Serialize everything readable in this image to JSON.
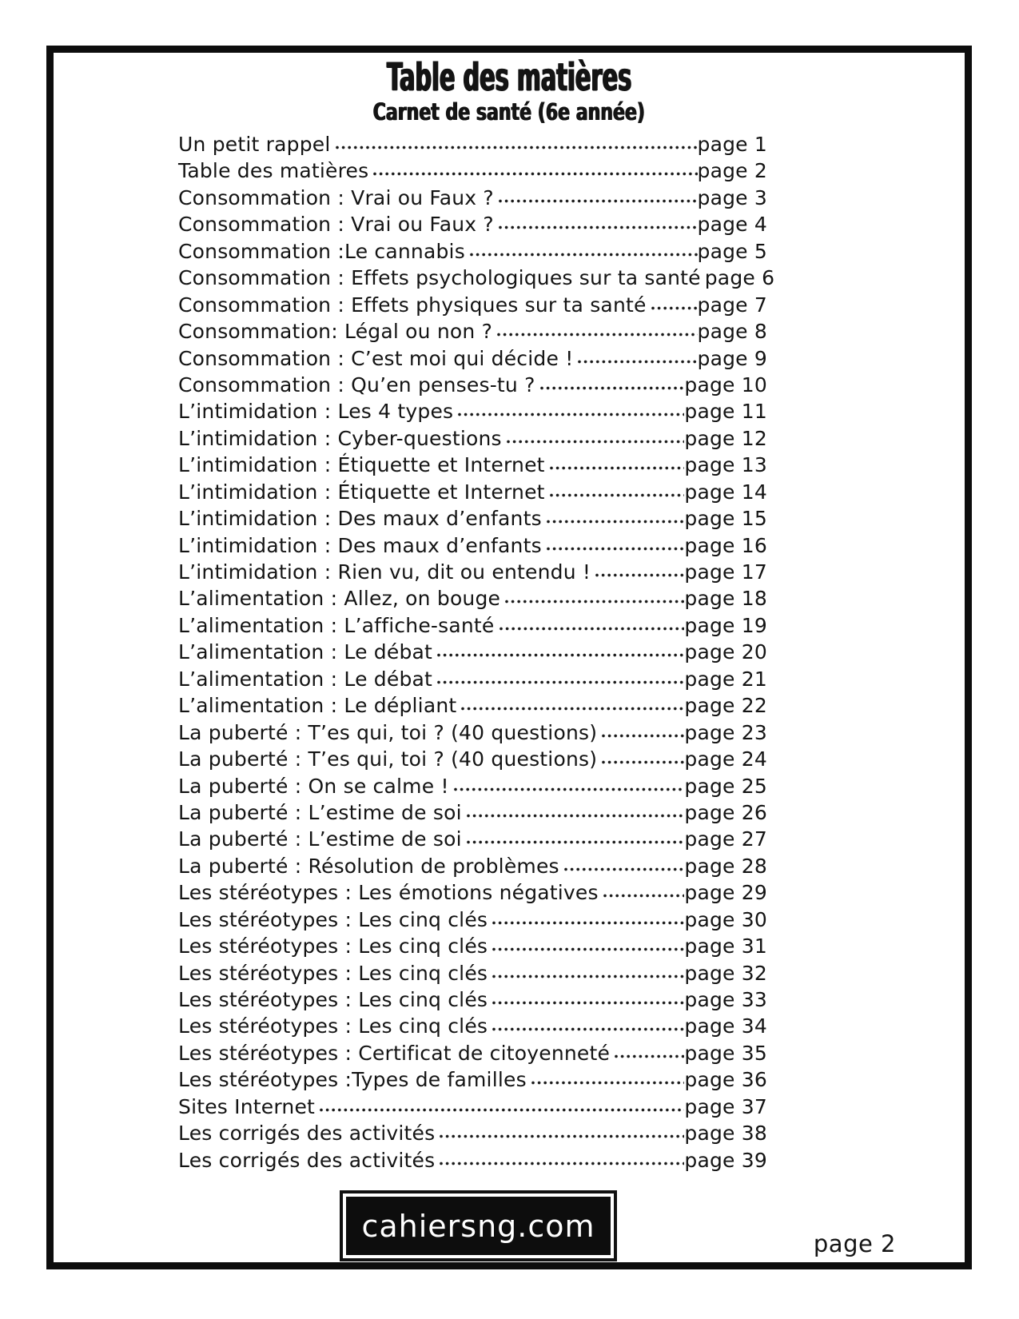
{
  "colors": {
    "ink": "#141414",
    "paper": "#ffffff",
    "frame": "#0d0d0d",
    "badge_background": "#0d0d0d",
    "badge_text": "#ffffff"
  },
  "header": {
    "title": "Table des matières",
    "subtitle": "Carnet de santé (6e année)"
  },
  "toc": {
    "entries": [
      {
        "label": "Un petit rappel",
        "page": "page 1"
      },
      {
        "label": "Table des matières",
        "page": "page 2"
      },
      {
        "label": "Consommation : Vrai ou Faux ?",
        "page": "page 3"
      },
      {
        "label": "Consommation : Vrai ou Faux ?",
        "page": "page 4"
      },
      {
        "label": "Consommation :Le cannabis",
        "page": "page 5"
      },
      {
        "label": "Consommation : Effets psychologiques sur ta santé",
        "page": "page 6"
      },
      {
        "label": "Consommation : Effets physiques sur ta santé",
        "page": "page 7"
      },
      {
        "label": "Consommation: Légal ou non ?",
        "page": "page 8"
      },
      {
        "label": "Consommation : C’est moi qui décide !",
        "page": "page 9"
      },
      {
        "label": "Consommation : Qu’en penses-tu ?",
        "page": "page 10"
      },
      {
        "label": "L’intimidation : Les 4 types",
        "page": "page 11"
      },
      {
        "label": "L’intimidation : Cyber-questions",
        "page": "page 12"
      },
      {
        "label": "L’intimidation : Étiquette et Internet",
        "page": "page 13"
      },
      {
        "label": "L’intimidation : Étiquette et Internet",
        "page": "page 14"
      },
      {
        "label": "L’intimidation : Des maux d’enfants",
        "page": "page 15"
      },
      {
        "label": "L’intimidation : Des maux d’enfants",
        "page": "page 16"
      },
      {
        "label": "L’intimidation : Rien vu, dit ou entendu !",
        "page": "page 17"
      },
      {
        "label": "L’alimentation : Allez, on bouge",
        "page": "page 18"
      },
      {
        "label": "L’alimentation : L’affiche-santé",
        "page": "page 19"
      },
      {
        "label": "L’alimentation : Le débat",
        "page": "page 20"
      },
      {
        "label": "L’alimentation : Le débat",
        "page": "page 21"
      },
      {
        "label": "L’alimentation : Le dépliant",
        "page": "page 22"
      },
      {
        "label": "La puberté : T’es qui, toi ? (40 questions)",
        "page": "page 23"
      },
      {
        "label": "La puberté : T’es qui, toi ? (40 questions)",
        "page": "page 24"
      },
      {
        "label": "La puberté : On se calme !",
        "page": "page 25"
      },
      {
        "label": "La puberté : L’estime de soi",
        "page": "page 26"
      },
      {
        "label": "La puberté : L’estime de soi",
        "page": "page 27"
      },
      {
        "label": "La puberté : Résolution de problèmes",
        "page": "page 28"
      },
      {
        "label": "Les stéréotypes : Les émotions négatives",
        "page": "page 29"
      },
      {
        "label": "Les stéréotypes : Les cinq clés",
        "page": "page 30"
      },
      {
        "label": "Les stéréotypes : Les cinq clés",
        "page": "page 31"
      },
      {
        "label": "Les stéréotypes : Les cinq clés",
        "page": "page 32"
      },
      {
        "label": "Les stéréotypes : Les cinq clés",
        "page": "page 33"
      },
      {
        "label": "Les stéréotypes : Les cinq clés",
        "page": "page 34"
      },
      {
        "label": "Les stéréotypes : Certificat de citoyenneté",
        "page": "page 35"
      },
      {
        "label": "Les stéréotypes :Types de familles",
        "page": "page 36"
      },
      {
        "label": "Sites Internet",
        "page": "page 37"
      },
      {
        "label": "Les corrigés des activités",
        "page": "page 38"
      },
      {
        "label": "Les corrigés des activités",
        "page": "page 39"
      }
    ]
  },
  "footer": {
    "site": "cahiersng.com",
    "page_label": "page 2"
  }
}
